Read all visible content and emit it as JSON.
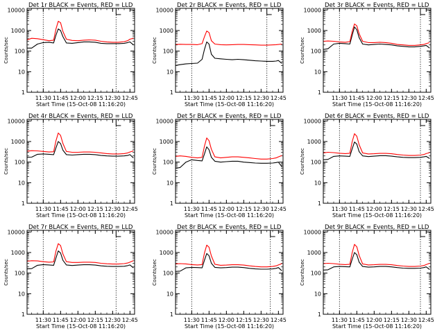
{
  "chart_data": [
    {
      "type": "line",
      "title": "Det 1r BLACK = Events, RED = LLD",
      "xlabel": "Start Time (15-Oct-08 11:16:20)",
      "ylabel": "Counts/sec",
      "x_ticks": [
        "11:30",
        "11:45",
        "12:00",
        "12:15",
        "12:30",
        "12:45"
      ],
      "y_ticks": [
        "1",
        "10",
        "100",
        "1000",
        "10000"
      ],
      "yscale": "log",
      "ylim": [
        1,
        12000
      ],
      "x": [
        "11:16",
        "11:20",
        "11:25",
        "11:30",
        "11:35",
        "11:39",
        "11:41",
        "11:43",
        "11:45",
        "11:47",
        "11:50",
        "11:55",
        "12:00",
        "12:05",
        "12:10",
        "12:15",
        "12:20",
        "12:25",
        "12:30",
        "12:35",
        "12:40",
        "12:43",
        "12:45",
        "12:48"
      ],
      "dotted_lines": [
        "11:30",
        "12:33"
      ],
      "series": [
        {
          "color": "#000000",
          "values": [
            140,
            140,
            220,
            260,
            270,
            250,
            600,
            1200,
            1000,
            500,
            250,
            240,
            260,
            280,
            280,
            270,
            240,
            230,
            230,
            230,
            240,
            260,
            280,
            200
          ]
        },
        {
          "color": "#ff0000",
          "values": [
            350,
            420,
            400,
            360,
            320,
            340,
            1200,
            2800,
            2400,
            900,
            380,
            330,
            320,
            340,
            350,
            340,
            300,
            280,
            270,
            270,
            290,
            320,
            380,
            420
          ]
        }
      ]
    },
    {
      "type": "line",
      "title": "Det 2r BLACK = Events, RED = LLD",
      "xlabel": "Start Time (15-Oct-08 11:16:20)",
      "ylabel": "Counts/sec",
      "x_ticks": [
        "11:30",
        "11:45",
        "12:00",
        "12:15",
        "12:30",
        "12:45"
      ],
      "y_ticks": [
        "1",
        "10",
        "100",
        "1000",
        "10000"
      ],
      "yscale": "log",
      "ylim": [
        1,
        12000
      ],
      "x": [
        "11:16",
        "11:20",
        "11:25",
        "11:30",
        "11:35",
        "11:39",
        "11:41",
        "11:43",
        "11:45",
        "11:47",
        "11:50",
        "11:55",
        "12:00",
        "12:05",
        "12:10",
        "12:15",
        "12:20",
        "12:25",
        "12:30",
        "12:35",
        "12:40",
        "12:43",
        "12:45",
        "12:48"
      ],
      "dotted_lines": [
        "11:30",
        "12:35"
      ],
      "series": [
        {
          "color": "#000000",
          "values": [
            20,
            22,
            24,
            25,
            26,
            40,
            120,
            280,
            220,
            70,
            45,
            42,
            40,
            38,
            40,
            38,
            36,
            34,
            33,
            32,
            32,
            33,
            35,
            25
          ]
        },
        {
          "color": "#ff0000",
          "values": [
            210,
            215,
            210,
            210,
            205,
            230,
            500,
            950,
            800,
            320,
            220,
            205,
            200,
            205,
            210,
            210,
            205,
            200,
            195,
            195,
            200,
            205,
            210,
            220
          ]
        }
      ]
    },
    {
      "type": "line",
      "title": "Det 3r BLACK = Events, RED = LLD",
      "xlabel": "Start Time (15-Oct-08 11:16:20)",
      "ylabel": "Counts/sec",
      "x_ticks": [
        "11:30",
        "11:45",
        "12:00",
        "12:15",
        "12:30",
        "12:45"
      ],
      "y_ticks": [
        "1",
        "10",
        "100",
        "1000",
        "10000"
      ],
      "yscale": "log",
      "ylim": [
        1,
        12000
      ],
      "x": [
        "11:16",
        "11:20",
        "11:25",
        "11:30",
        "11:35",
        "11:39",
        "11:41",
        "11:43",
        "11:45",
        "11:47",
        "11:50",
        "11:55",
        "12:00",
        "12:05",
        "12:10",
        "12:15",
        "12:20",
        "12:25",
        "12:30",
        "12:35",
        "12:40",
        "12:43",
        "12:45",
        "12:48"
      ],
      "dotted_lines": [
        "11:30",
        "12:40"
      ],
      "series": [
        {
          "color": "#000000",
          "values": [
            120,
            130,
            220,
            240,
            230,
            220,
            600,
            1500,
            1100,
            450,
            220,
            200,
            210,
            220,
            210,
            200,
            180,
            170,
            160,
            160,
            170,
            180,
            190,
            140
          ]
        },
        {
          "color": "#ff0000",
          "values": [
            300,
            310,
            300,
            280,
            270,
            290,
            900,
            2100,
            1700,
            700,
            300,
            260,
            260,
            270,
            260,
            240,
            210,
            200,
            190,
            190,
            200,
            210,
            230,
            260
          ]
        }
      ]
    },
    {
      "type": "line",
      "title": "Det 4r BLACK = Events, RED = LLD",
      "xlabel": "Start Time (15-Oct-08 11:16:20)",
      "ylabel": "Counts/sec",
      "x_ticks": [
        "11:30",
        "11:45",
        "12:00",
        "12:15",
        "12:30",
        "12:45"
      ],
      "y_ticks": [
        "1",
        "10",
        "100",
        "1000",
        "10000"
      ],
      "yscale": "log",
      "ylim": [
        1,
        12000
      ],
      "x": [
        "11:16",
        "11:20",
        "11:25",
        "11:30",
        "11:35",
        "11:39",
        "11:41",
        "11:43",
        "11:45",
        "11:47",
        "11:50",
        "11:55",
        "12:00",
        "12:05",
        "12:10",
        "12:15",
        "12:20",
        "12:25",
        "12:30",
        "12:35",
        "12:40",
        "12:43",
        "12:45",
        "12:48"
      ],
      "dotted_lines": [
        "11:30",
        "12:33"
      ],
      "series": [
        {
          "color": "#000000",
          "values": [
            170,
            175,
            240,
            250,
            240,
            230,
            500,
            1000,
            800,
            380,
            230,
            220,
            230,
            240,
            240,
            230,
            210,
            200,
            195,
            195,
            200,
            210,
            230,
            160
          ]
        },
        {
          "color": "#ff0000",
          "values": [
            340,
            360,
            350,
            330,
            310,
            320,
            1100,
            2600,
            2000,
            800,
            330,
            300,
            300,
            310,
            310,
            300,
            280,
            260,
            250,
            250,
            260,
            280,
            310,
            350
          ]
        }
      ]
    },
    {
      "type": "line",
      "title": "Det 5r BLACK = Events, RED = LLD",
      "xlabel": "Start Time (15-Oct-08 11:16:20)",
      "ylabel": "Counts/sec",
      "x_ticks": [
        "11:30",
        "11:45",
        "12:00",
        "12:15",
        "12:30",
        "12:45"
      ],
      "y_ticks": [
        "1",
        "10",
        "100",
        "1000",
        "10000"
      ],
      "yscale": "log",
      "ylim": [
        1,
        12000
      ],
      "x": [
        "11:16",
        "11:20",
        "11:25",
        "11:30",
        "11:35",
        "11:39",
        "11:41",
        "11:43",
        "11:45",
        "11:47",
        "11:50",
        "11:55",
        "12:00",
        "12:05",
        "12:10",
        "12:15",
        "12:20",
        "12:25",
        "12:30",
        "12:35",
        "12:40",
        "12:43",
        "12:45",
        "12:48"
      ],
      "dotted_lines": [
        "11:30",
        "12:38"
      ],
      "series": [
        {
          "color": "#000000",
          "values": [
            50,
            55,
            100,
            130,
            120,
            115,
            250,
            550,
            400,
            170,
            110,
            100,
            105,
            110,
            110,
            100,
            95,
            90,
            88,
            88,
            90,
            95,
            100,
            60
          ]
        },
        {
          "color": "#ff0000",
          "values": [
            190,
            200,
            190,
            170,
            160,
            170,
            600,
            1500,
            1100,
            420,
            180,
            160,
            170,
            180,
            180,
            170,
            160,
            150,
            140,
            140,
            150,
            160,
            180,
            210
          ]
        }
      ]
    },
    {
      "type": "line",
      "title": "Det 6r BLACK = Events, RED = LLD",
      "xlabel": "Start Time (15-Oct-08 11:16:20)",
      "ylabel": "Counts/sec",
      "x_ticks": [
        "11:30",
        "11:45",
        "12:00",
        "12:15",
        "12:30",
        "12:45"
      ],
      "y_ticks": [
        "1",
        "10",
        "100",
        "1000",
        "10000"
      ],
      "yscale": "log",
      "ylim": [
        1,
        12000
      ],
      "x": [
        "11:16",
        "11:20",
        "11:25",
        "11:30",
        "11:35",
        "11:39",
        "11:41",
        "11:43",
        "11:45",
        "11:47",
        "11:50",
        "11:55",
        "12:00",
        "12:05",
        "12:10",
        "12:15",
        "12:20",
        "12:25",
        "12:30",
        "12:35",
        "12:40",
        "12:43",
        "12:45",
        "12:48"
      ],
      "dotted_lines": [
        "11:30",
        "12:40"
      ],
      "series": [
        {
          "color": "#000000",
          "values": [
            130,
            135,
            190,
            200,
            195,
            190,
            450,
            950,
            750,
            320,
            200,
            185,
            195,
            205,
            205,
            195,
            180,
            170,
            165,
            165,
            170,
            180,
            190,
            150
          ]
        },
        {
          "color": "#ff0000",
          "values": [
            280,
            300,
            290,
            270,
            260,
            270,
            1000,
            2400,
            1800,
            700,
            280,
            250,
            255,
            265,
            265,
            255,
            235,
            220,
            210,
            210,
            220,
            235,
            260,
            290
          ]
        }
      ]
    },
    {
      "type": "line",
      "title": "Det 7r BLACK = Events, RED = LLD",
      "xlabel": "Start Time (15-Oct-08 11:16:20)",
      "ylabel": "Counts/sec",
      "x_ticks": [
        "11:30",
        "11:45",
        "12:00",
        "12:15",
        "12:30",
        "12:45"
      ],
      "y_ticks": [
        "1",
        "10",
        "100",
        "1000",
        "10000"
      ],
      "yscale": "log",
      "ylim": [
        1,
        12000
      ],
      "x": [
        "11:16",
        "11:20",
        "11:25",
        "11:30",
        "11:35",
        "11:39",
        "11:41",
        "11:43",
        "11:45",
        "11:47",
        "11:50",
        "11:55",
        "12:00",
        "12:05",
        "12:10",
        "12:15",
        "12:20",
        "12:25",
        "12:30",
        "12:35",
        "12:40",
        "12:43",
        "12:45",
        "12:48"
      ],
      "dotted_lines": [
        "11:30",
        "12:33"
      ],
      "series": [
        {
          "color": "#000000",
          "values": [
            160,
            165,
            240,
            260,
            250,
            240,
            550,
            1200,
            950,
            420,
            250,
            235,
            245,
            255,
            255,
            245,
            225,
            215,
            210,
            210,
            215,
            230,
            250,
            180
          ]
        },
        {
          "color": "#ff0000",
          "values": [
            380,
            400,
            390,
            360,
            340,
            350,
            1200,
            2700,
            2200,
            850,
            360,
            330,
            330,
            340,
            340,
            330,
            300,
            285,
            275,
            275,
            290,
            310,
            340,
            400
          ]
        }
      ]
    },
    {
      "type": "line",
      "title": "Det 8r BLACK = Events, RED = LLD",
      "xlabel": "Start Time (15-Oct-08 11:16:20)",
      "ylabel": "Counts/sec",
      "x_ticks": [
        "11:30",
        "11:45",
        "12:00",
        "12:15",
        "12:30",
        "12:45"
      ],
      "y_ticks": [
        "1",
        "10",
        "100",
        "1000",
        "10000"
      ],
      "yscale": "log",
      "ylim": [
        1,
        12000
      ],
      "x": [
        "11:16",
        "11:20",
        "11:25",
        "11:30",
        "11:35",
        "11:39",
        "11:41",
        "11:43",
        "11:45",
        "11:47",
        "11:50",
        "11:55",
        "12:00",
        "12:05",
        "12:10",
        "12:15",
        "12:20",
        "12:25",
        "12:30",
        "12:35",
        "12:40",
        "12:43",
        "12:45",
        "12:48"
      ],
      "dotted_lines": [
        "11:30",
        "12:38"
      ],
      "series": [
        {
          "color": "#000000",
          "values": [
            120,
            125,
            180,
            190,
            185,
            180,
            420,
            900,
            700,
            300,
            190,
            180,
            185,
            195,
            195,
            185,
            170,
            160,
            155,
            155,
            160,
            170,
            185,
            130
          ]
        },
        {
          "color": "#ff0000",
          "values": [
            280,
            290,
            280,
            260,
            250,
            260,
            950,
            2300,
            1800,
            680,
            270,
            240,
            245,
            255,
            255,
            245,
            225,
            210,
            200,
            200,
            210,
            225,
            250,
            290
          ]
        }
      ]
    },
    {
      "type": "line",
      "title": "Det 9r BLACK = Events, RED = LLD",
      "xlabel": "Start Time (15-Oct-08 11:16:20)",
      "ylabel": "Counts/sec",
      "x_ticks": [
        "11:30",
        "11:45",
        "12:00",
        "12:15",
        "12:30",
        "12:45"
      ],
      "y_ticks": [
        "1",
        "10",
        "100",
        "1000",
        "10000"
      ],
      "yscale": "log",
      "ylim": [
        1,
        12000
      ],
      "x": [
        "11:16",
        "11:20",
        "11:25",
        "11:30",
        "11:35",
        "11:39",
        "11:41",
        "11:43",
        "11:45",
        "11:47",
        "11:50",
        "11:55",
        "12:00",
        "12:05",
        "12:10",
        "12:15",
        "12:20",
        "12:25",
        "12:30",
        "12:35",
        "12:40",
        "12:43",
        "12:45",
        "12:48"
      ],
      "dotted_lines": [
        "11:30",
        "12:40"
      ],
      "series": [
        {
          "color": "#000000",
          "values": [
            140,
            145,
            200,
            210,
            205,
            200,
            480,
            1000,
            780,
            340,
            210,
            195,
            200,
            210,
            210,
            200,
            185,
            175,
            170,
            170,
            175,
            185,
            200,
            150
          ]
        },
        {
          "color": "#ff0000",
          "values": [
            290,
            300,
            290,
            270,
            260,
            270,
            1000,
            2500,
            1900,
            720,
            280,
            250,
            255,
            265,
            265,
            255,
            235,
            220,
            210,
            210,
            220,
            235,
            260,
            300
          ]
        }
      ]
    }
  ]
}
